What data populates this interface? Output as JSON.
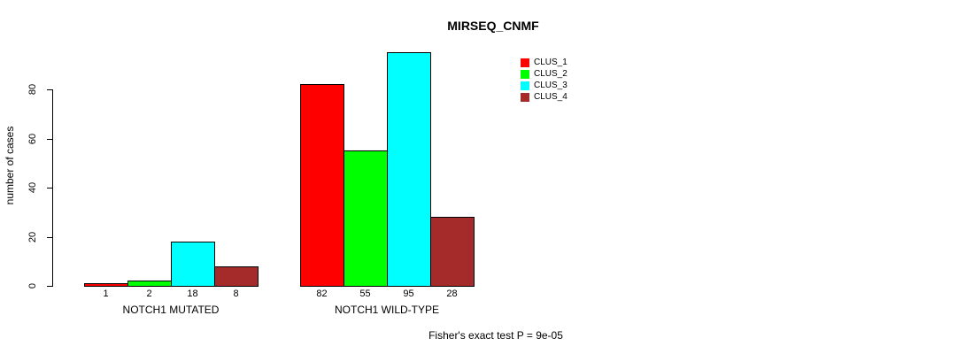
{
  "chart_data": {
    "type": "bar",
    "title": "MIRSEQ_CNMF",
    "ylabel": "number of cases",
    "xlabel": "",
    "categories": [
      "NOTCH1 MUTATED",
      "NOTCH1 WILD-TYPE"
    ],
    "series": [
      {
        "name": "CLUS_1",
        "color": "#FF0000",
        "values": [
          1,
          82
        ]
      },
      {
        "name": "CLUS_2",
        "color": "#00FF00",
        "values": [
          2,
          55
        ]
      },
      {
        "name": "CLUS_3",
        "color": "#00FFFF",
        "values": [
          18,
          95
        ]
      },
      {
        "name": "CLUS_4",
        "color": "#A52A2A",
        "values": [
          8,
          28
        ]
      }
    ],
    "yticks": [
      0,
      20,
      40,
      60,
      80
    ],
    "ylim": [
      0,
      95
    ],
    "grid": false,
    "legend_position": "top-right",
    "bar_value_labels_shown": true,
    "footnote": "Fisher's exact test P = 9e-05",
    "text_color": "#000000",
    "bar_border_color": "#000000"
  }
}
